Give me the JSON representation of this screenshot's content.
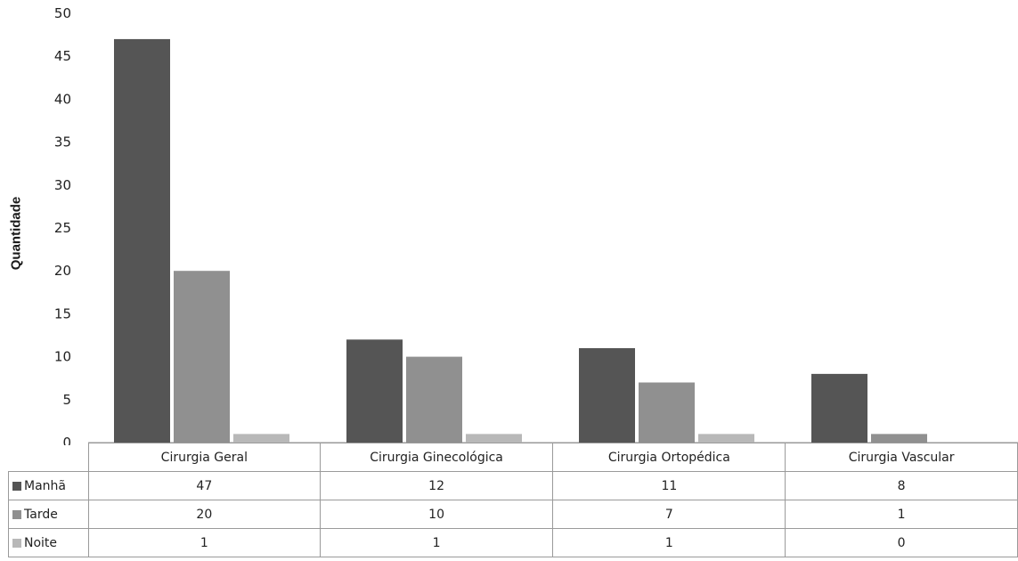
{
  "chart_data": {
    "type": "bar",
    "ylabel": "Quantidade",
    "ylim": [
      0,
      50
    ],
    "yticks": [
      "0",
      "5",
      "10",
      "15",
      "20",
      "25",
      "30",
      "35",
      "40",
      "45",
      "50"
    ],
    "categories": [
      "Cirurgia Geral",
      "Cirurgia Ginecológica",
      "Cirurgia Ortopédica",
      "Cirurgia Vascular"
    ],
    "series": [
      {
        "name": "Manhã",
        "color": "#555555",
        "values": [
          47,
          12,
          11,
          8
        ]
      },
      {
        "name": "Tarde",
        "color": "#909090",
        "values": [
          20,
          10,
          7,
          1
        ]
      },
      {
        "name": "Noite",
        "color": "#b8b8b8",
        "values": [
          1,
          1,
          1,
          0
        ]
      }
    ],
    "legend": "data table (left)",
    "grid": false
  }
}
